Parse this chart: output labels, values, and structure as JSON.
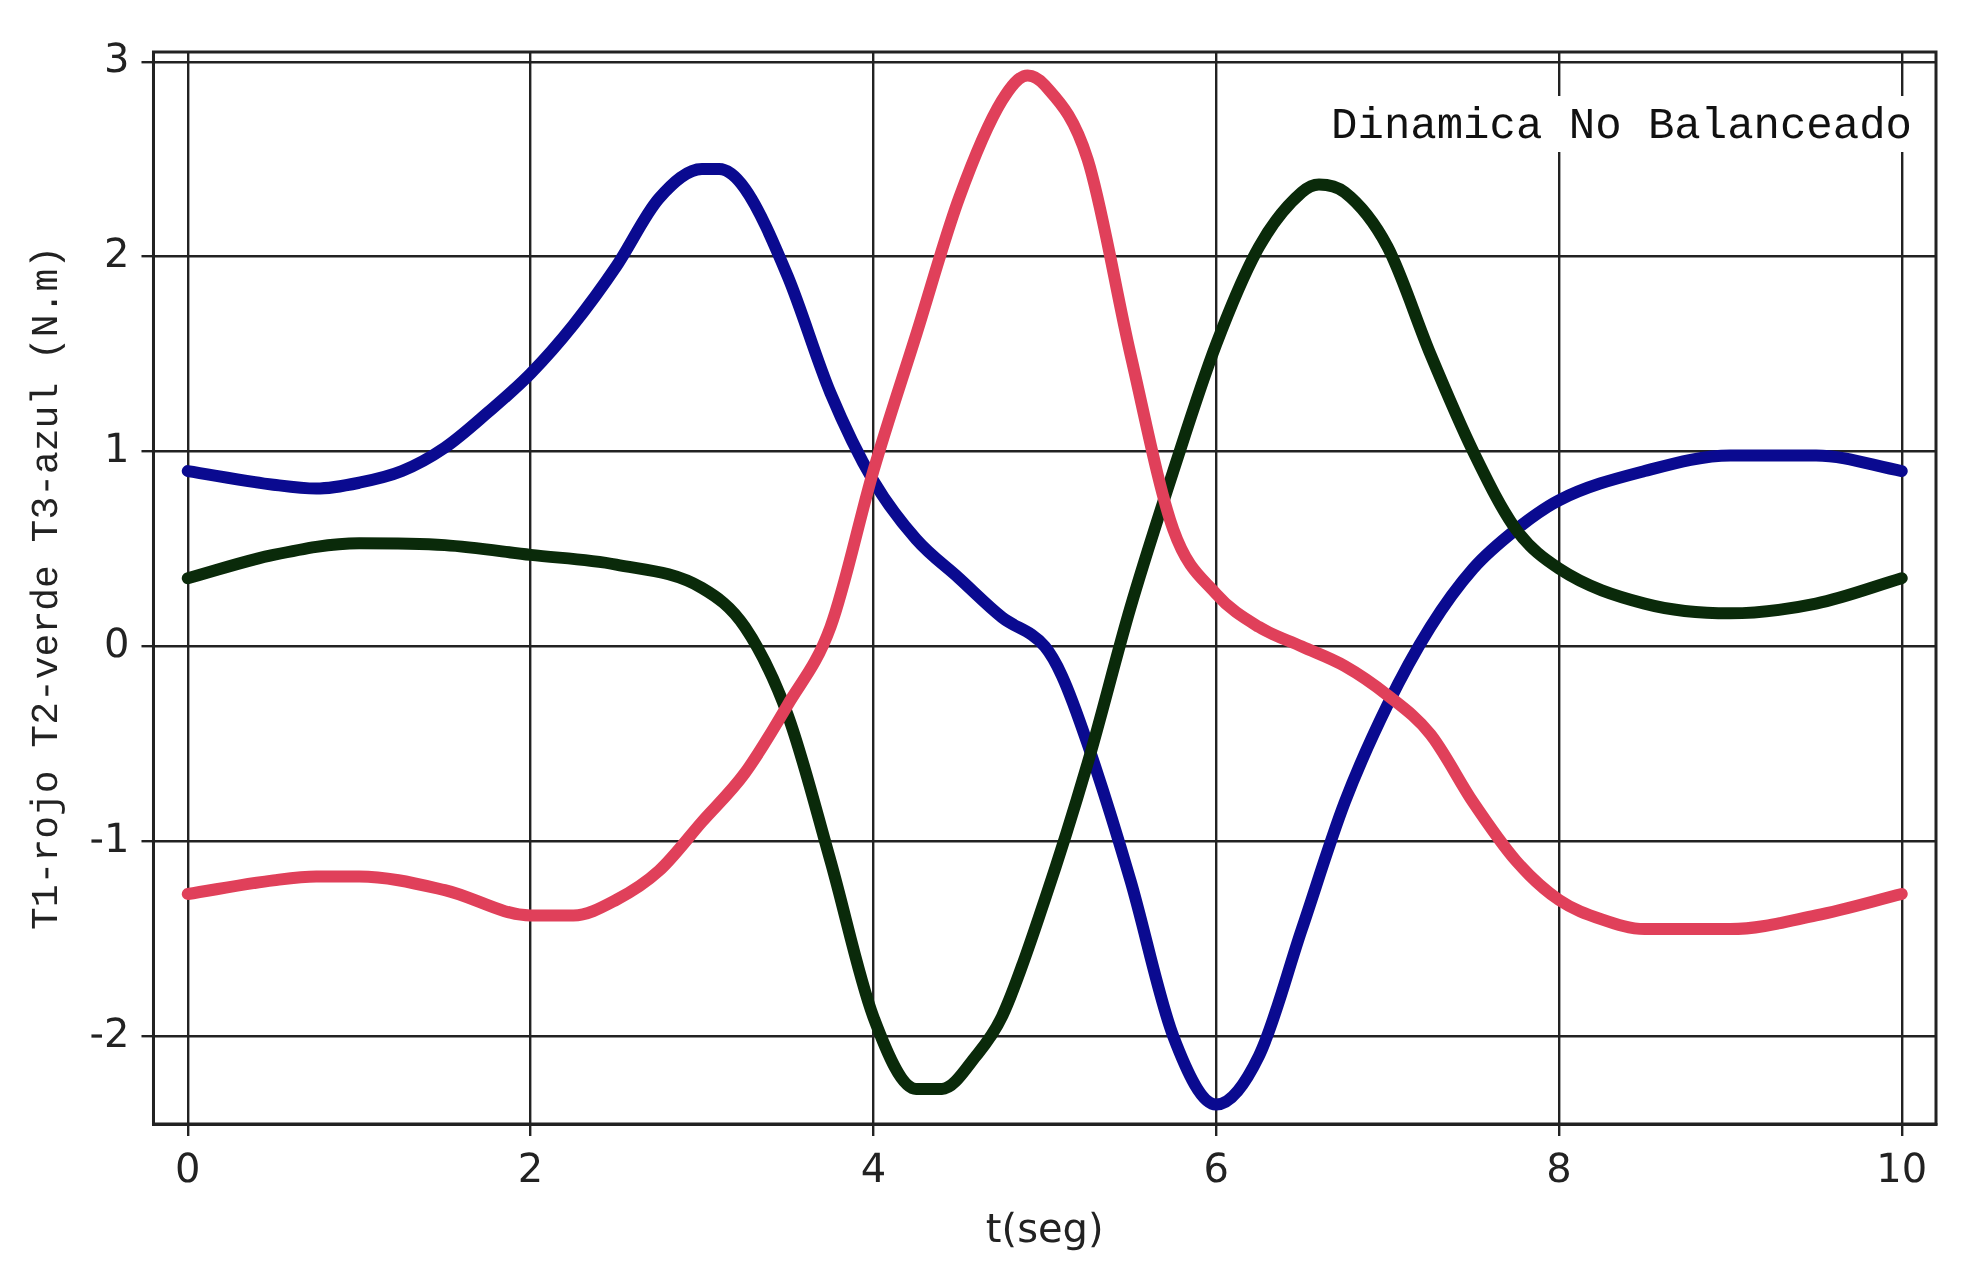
{
  "chart_data": {
    "type": "line",
    "xlabel": "t(seg)",
    "ylabel": "T1-rojo T2-verde T3-azul (N.m)",
    "annotations": [
      "Dinamica No Balanceado"
    ],
    "xlim": [
      -0.2,
      10.2
    ],
    "ylim": [
      -2.45,
      3.05
    ],
    "xticks": [
      0,
      2,
      4,
      6,
      8,
      10
    ],
    "yticks": [
      -2,
      -1,
      0,
      1,
      2,
      3
    ],
    "grid": true,
    "legend": false,
    "marker": "none",
    "line_style": "solid",
    "series": [
      {
        "color": "#e0405a",
        "x": [
          0,
          0.5,
          0.75,
          1,
          1.5,
          2,
          2.25,
          2.5,
          2.75,
          3,
          3.25,
          3.5,
          3.75,
          4,
          4.25,
          4.5,
          4.75,
          4.9,
          5,
          5.25,
          5.5,
          5.75,
          6,
          6.25,
          6.5,
          6.75,
          7,
          7.25,
          7.5,
          7.75,
          8,
          8.25,
          8.5,
          9,
          9.5,
          10
        ],
        "values": [
          -1.27,
          -1.2,
          -1.18,
          -1.18,
          -1.25,
          -1.38,
          -1.38,
          -1.3,
          -1.15,
          -0.9,
          -0.65,
          -0.3,
          0.1,
          0.9,
          1.6,
          2.3,
          2.8,
          2.93,
          2.88,
          2.5,
          1.5,
          0.6,
          0.27,
          0.1,
          0,
          -0.1,
          -0.25,
          -0.45,
          -0.8,
          -1.1,
          -1.3,
          -1.4,
          -1.45,
          -1.45,
          -1.38,
          -1.27
        ]
      },
      {
        "color": "#0a2a0a",
        "x": [
          0,
          0.5,
          1,
          1.5,
          2,
          2.5,
          3,
          3.25,
          3.5,
          3.75,
          4,
          4.25,
          4.4,
          4.6,
          4.75,
          5,
          5.25,
          5.5,
          5.75,
          6,
          6.25,
          6.5,
          6.6,
          6.75,
          7,
          7.25,
          7.5,
          7.75,
          8,
          8.5,
          9,
          9.5,
          10
        ],
        "values": [
          0.35,
          0.47,
          0.53,
          0.52,
          0.47,
          0.42,
          0.3,
          0.1,
          -0.35,
          -1.1,
          -1.9,
          -2.27,
          -2.27,
          -2.1,
          -1.9,
          -1.3,
          -0.6,
          0.2,
          0.9,
          1.55,
          2.05,
          2.33,
          2.37,
          2.33,
          2.05,
          1.5,
          1,
          0.6,
          0.4,
          0.22,
          0.17,
          0.22,
          0.35
        ]
      },
      {
        "color": "#0a0a90",
        "x": [
          0,
          0.5,
          0.75,
          1,
          1.25,
          1.5,
          1.75,
          2,
          2.25,
          2.5,
          2.75,
          3,
          3.1,
          3.25,
          3.5,
          3.75,
          4,
          4.25,
          4.5,
          4.75,
          5,
          5.1,
          5.25,
          5.5,
          5.75,
          6,
          6.25,
          6.5,
          6.75,
          7,
          7.25,
          7.5,
          7.75,
          8,
          8.5,
          9,
          9.5,
          10
        ],
        "values": [
          0.9,
          0.83,
          0.81,
          0.84,
          0.9,
          1.02,
          1.2,
          1.4,
          1.65,
          1.95,
          2.3,
          2.45,
          2.45,
          2.35,
          1.9,
          1.3,
          0.85,
          0.55,
          0.35,
          0.15,
          0,
          -0.15,
          -0.5,
          -1.2,
          -2,
          -2.35,
          -2.1,
          -1.45,
          -0.8,
          -0.3,
          0.1,
          0.4,
          0.6,
          0.75,
          0.9,
          0.98,
          0.98,
          0.9
        ]
      }
    ]
  }
}
